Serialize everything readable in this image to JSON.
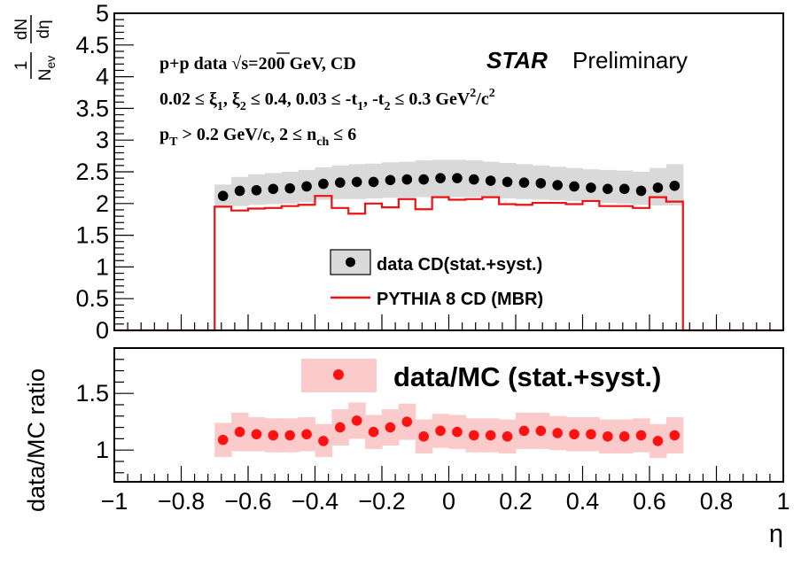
{
  "chart_data": [
    {
      "type": "scatter",
      "panel": "top",
      "xlim": [
        -1,
        1
      ],
      "ylim": [
        0,
        5
      ],
      "ylabel": {
        "prefix": "1",
        "denom_base": "N",
        "denom_sub": "ev",
        "deriv_num": "dN",
        "deriv_den": "dη"
      },
      "y_tick_labels": [
        "0",
        "0.5",
        "1",
        "1.5",
        "2",
        "2.5",
        "3",
        "3.5",
        "4",
        "4.5",
        "5"
      ],
      "y_ticks": [
        0,
        0.5,
        1,
        1.5,
        2,
        2.5,
        3,
        3.5,
        4,
        4.5,
        5
      ],
      "series": [
        {
          "name": "data CD(stat.+syst.)",
          "color": "#000000",
          "band_color": "#d9d9d9",
          "x": [
            -0.675,
            -0.625,
            -0.575,
            -0.525,
            -0.475,
            -0.425,
            -0.375,
            -0.325,
            -0.275,
            -0.225,
            -0.175,
            -0.125,
            -0.075,
            -0.025,
            0.025,
            0.075,
            0.125,
            0.175,
            0.225,
            0.275,
            0.325,
            0.375,
            0.425,
            0.475,
            0.525,
            0.575,
            0.625,
            0.675
          ],
          "values": [
            2.12,
            2.2,
            2.21,
            2.23,
            2.24,
            2.27,
            2.31,
            2.33,
            2.34,
            2.34,
            2.37,
            2.38,
            2.38,
            2.4,
            2.4,
            2.38,
            2.36,
            2.34,
            2.33,
            2.32,
            2.29,
            2.27,
            2.25,
            2.23,
            2.23,
            2.2,
            2.25,
            2.28
          ],
          "band_lo": [
            1.95,
            1.96,
            1.98,
            1.99,
            2.0,
            2.02,
            2.06,
            2.07,
            2.07,
            2.08,
            2.09,
            2.09,
            2.1,
            2.1,
            2.1,
            2.1,
            2.09,
            2.08,
            2.07,
            2.06,
            2.05,
            2.04,
            2.03,
            2.01,
            2.0,
            1.98,
            1.97,
            1.97
          ],
          "band_hi": [
            2.3,
            2.42,
            2.46,
            2.48,
            2.5,
            2.53,
            2.57,
            2.6,
            2.62,
            2.63,
            2.65,
            2.66,
            2.68,
            2.69,
            2.69,
            2.68,
            2.66,
            2.64,
            2.62,
            2.6,
            2.58,
            2.56,
            2.54,
            2.53,
            2.52,
            2.5,
            2.56,
            2.62
          ]
        },
        {
          "name": "PYTHIA 8 CD (MBR)",
          "color": "#ee1111",
          "type": "step",
          "bin_edges": [
            -0.7,
            -0.65,
            -0.6,
            -0.55,
            -0.5,
            -0.45,
            -0.4,
            -0.35,
            -0.3,
            -0.25,
            -0.2,
            -0.15,
            -0.1,
            -0.05,
            0.0,
            0.05,
            0.1,
            0.15,
            0.2,
            0.25,
            0.3,
            0.35,
            0.4,
            0.45,
            0.5,
            0.55,
            0.6,
            0.65,
            0.7
          ],
          "values": [
            1.95,
            1.89,
            1.92,
            1.93,
            1.96,
            1.98,
            2.12,
            1.93,
            1.84,
            2.0,
            1.94,
            2.07,
            1.91,
            2.1,
            2.06,
            2.07,
            2.1,
            1.99,
            1.98,
            2.01,
            2.01,
            1.99,
            2.04,
            1.96,
            1.96,
            1.93,
            2.1,
            2.03
          ],
          "outside_value": 0
        }
      ],
      "legend": {
        "position": "center",
        "entries": [
          "data CD(stat.+syst.)",
          "PYTHIA 8 CD (MBR)"
        ]
      },
      "annotations": {
        "line1": {
          "text": "p+p data   √s=200 GeV, CD"
        },
        "line2": {
          "pre": "0.02  ≤  ξ",
          "s1": "1",
          "mid1": ",  ξ",
          "s2": "2",
          "mid2": "  ≤ 0.4, 0.03  ≤ -t",
          "s3": "1",
          "mid3": ", -t",
          "s4": "2",
          "mid4": "  ≤ 0.3 GeV",
          "sup1": "2",
          "mid5": "/c",
          "sup2": "2"
        },
        "line3": {
          "pre": "p",
          "s1": "T",
          "mid1": " > 0.2 GeV/c, 2  ≤ n",
          "s2": "ch",
          "post": "  ≤ 6"
        },
        "star": "STAR",
        "preliminary": "Preliminary"
      }
    },
    {
      "type": "scatter",
      "panel": "bottom",
      "xlim": [
        -1,
        1
      ],
      "ylim": [
        0.72,
        1.9
      ],
      "xlabel": "η",
      "ylabel": "data/MC ratio",
      "x_tick_labels": [
        "−1",
        "−0.8",
        "−0.6",
        "−0.4",
        "−0.2",
        "0",
        "0.2",
        "0.4",
        "0.6",
        "0.8",
        "1"
      ],
      "x_ticks": [
        -1,
        -0.8,
        -0.6,
        -0.4,
        -0.2,
        0,
        0.2,
        0.4,
        0.6,
        0.8,
        1
      ],
      "y_tick_labels": [
        "1",
        "1.5"
      ],
      "y_ticks": [
        1,
        1.5
      ],
      "series": [
        {
          "name": "data/MC (stat.+syst.)",
          "color": "#ff1111",
          "band_color": "#fbcaca",
          "x": [
            -0.675,
            -0.625,
            -0.575,
            -0.525,
            -0.475,
            -0.425,
            -0.375,
            -0.325,
            -0.275,
            -0.225,
            -0.175,
            -0.125,
            -0.075,
            -0.025,
            0.025,
            0.075,
            0.125,
            0.175,
            0.225,
            0.275,
            0.325,
            0.375,
            0.425,
            0.475,
            0.525,
            0.575,
            0.625,
            0.675
          ],
          "values": [
            1.09,
            1.16,
            1.14,
            1.13,
            1.13,
            1.14,
            1.08,
            1.2,
            1.26,
            1.16,
            1.2,
            1.25,
            1.12,
            1.17,
            1.16,
            1.13,
            1.13,
            1.12,
            1.17,
            1.17,
            1.15,
            1.14,
            1.14,
            1.12,
            1.12,
            1.13,
            1.08,
            1.13
          ],
          "band_lo": [
            0.94,
            0.99,
            0.99,
            0.98,
            0.98,
            0.99,
            0.94,
            1.04,
            1.1,
            1.01,
            1.04,
            1.09,
            0.97,
            1.02,
            1.01,
            0.98,
            0.98,
            0.97,
            1.01,
            1.01,
            1.0,
            0.99,
            0.99,
            0.97,
            0.97,
            0.98,
            0.93,
            0.97
          ],
          "band_hi": [
            1.24,
            1.33,
            1.29,
            1.28,
            1.28,
            1.29,
            1.23,
            1.36,
            1.42,
            1.31,
            1.36,
            1.41,
            1.27,
            1.32,
            1.31,
            1.28,
            1.28,
            1.27,
            1.33,
            1.33,
            1.3,
            1.29,
            1.29,
            1.27,
            1.27,
            1.28,
            1.23,
            1.29
          ]
        }
      ],
      "legend": {
        "position": "top-center",
        "entries": [
          "data/MC (stat.+syst.)"
        ]
      }
    }
  ]
}
